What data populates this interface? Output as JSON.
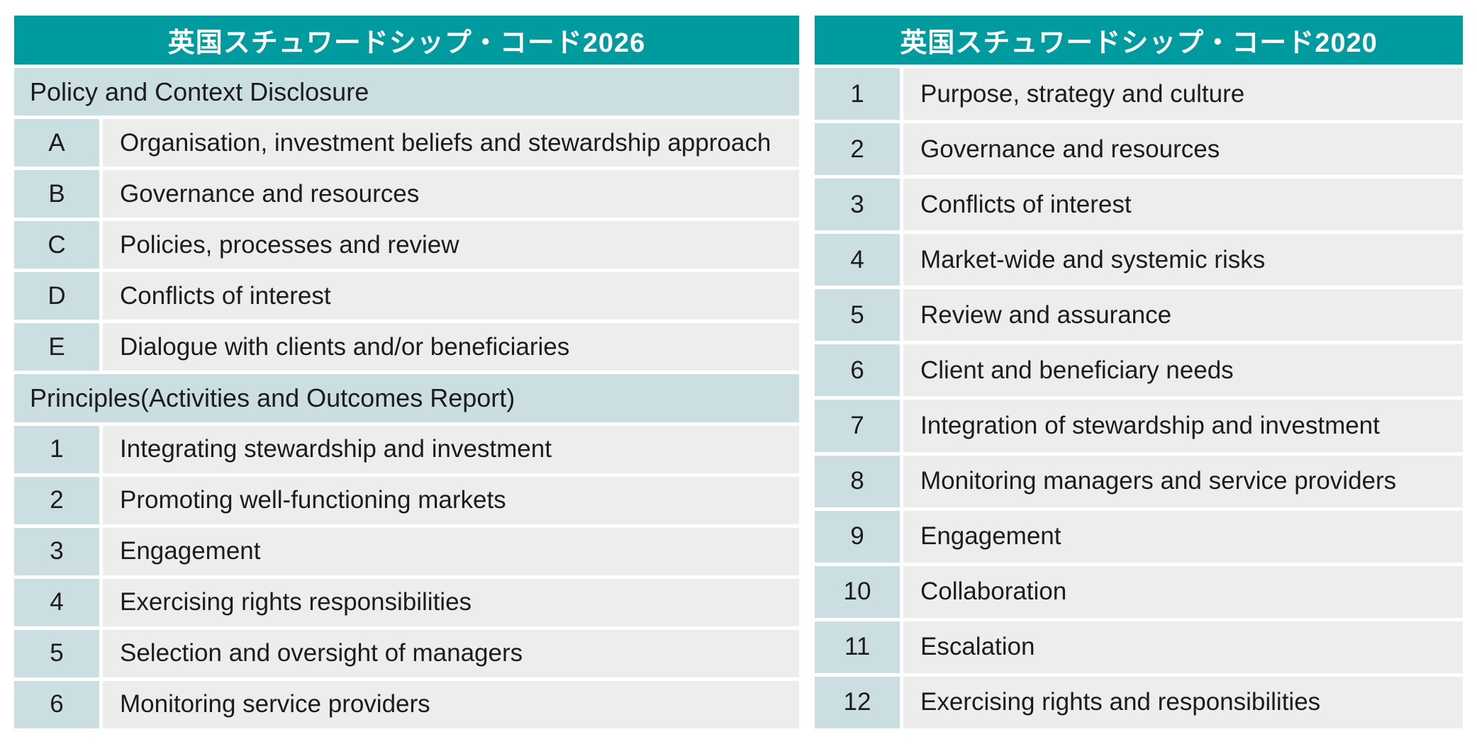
{
  "colors": {
    "header_teal": "#009B9E",
    "cell_light_teal": "#CBDEE1",
    "cell_gray": "#EDEDEE",
    "header_text": "#ffffff",
    "body_text": "#1c1c1c",
    "background": "#ffffff"
  },
  "code2026": {
    "title": "英国スチュワードシップ・コード2026",
    "rows": [
      {
        "type": "section",
        "label": "Policy and Context Disclosure"
      },
      {
        "type": "item",
        "id": "A",
        "label": "Organisation, investment beliefs and stewardship approach"
      },
      {
        "type": "item",
        "id": "B",
        "label": "Governance and resources"
      },
      {
        "type": "item",
        "id": "C",
        "label": "Policies, processes and review"
      },
      {
        "type": "item",
        "id": "D",
        "label": "Conflicts of interest"
      },
      {
        "type": "item",
        "id": "E",
        "label": "Dialogue with clients and/or beneficiaries"
      },
      {
        "type": "section",
        "label": "Principles(Activities and Outcomes Report)"
      },
      {
        "type": "item",
        "id": "1",
        "label": "Integrating stewardship and investment"
      },
      {
        "type": "item",
        "id": "2",
        "label": "Promoting well-functioning markets"
      },
      {
        "type": "item",
        "id": "3",
        "label": "Engagement"
      },
      {
        "type": "item",
        "id": "4",
        "label": "Exercising rights responsibilities"
      },
      {
        "type": "item",
        "id": "5",
        "label": "Selection and oversight of managers"
      },
      {
        "type": "item",
        "id": "6",
        "label": "Monitoring service providers"
      }
    ]
  },
  "code2020": {
    "title": "英国スチュワードシップ・コード2020",
    "rows": [
      {
        "type": "item",
        "id": "1",
        "label": "Purpose, strategy and culture"
      },
      {
        "type": "item",
        "id": "2",
        "label": "Governance and resources"
      },
      {
        "type": "item",
        "id": "3",
        "label": "Conflicts of interest"
      },
      {
        "type": "item",
        "id": "4",
        "label": "Market-wide and systemic risks"
      },
      {
        "type": "item",
        "id": "5",
        "label": "Review and assurance"
      },
      {
        "type": "item",
        "id": "6",
        "label": "Client and beneficiary needs"
      },
      {
        "type": "item",
        "id": "7",
        "label": "Integration of stewardship and investment"
      },
      {
        "type": "item",
        "id": "8",
        "label": "Monitoring managers and service providers"
      },
      {
        "type": "item",
        "id": "9",
        "label": "Engagement"
      },
      {
        "type": "item",
        "id": "10",
        "label": "Collaboration"
      },
      {
        "type": "item",
        "id": "11",
        "label": "Escalation"
      },
      {
        "type": "item",
        "id": "12",
        "label": "Exercising rights and responsibilities"
      }
    ]
  }
}
